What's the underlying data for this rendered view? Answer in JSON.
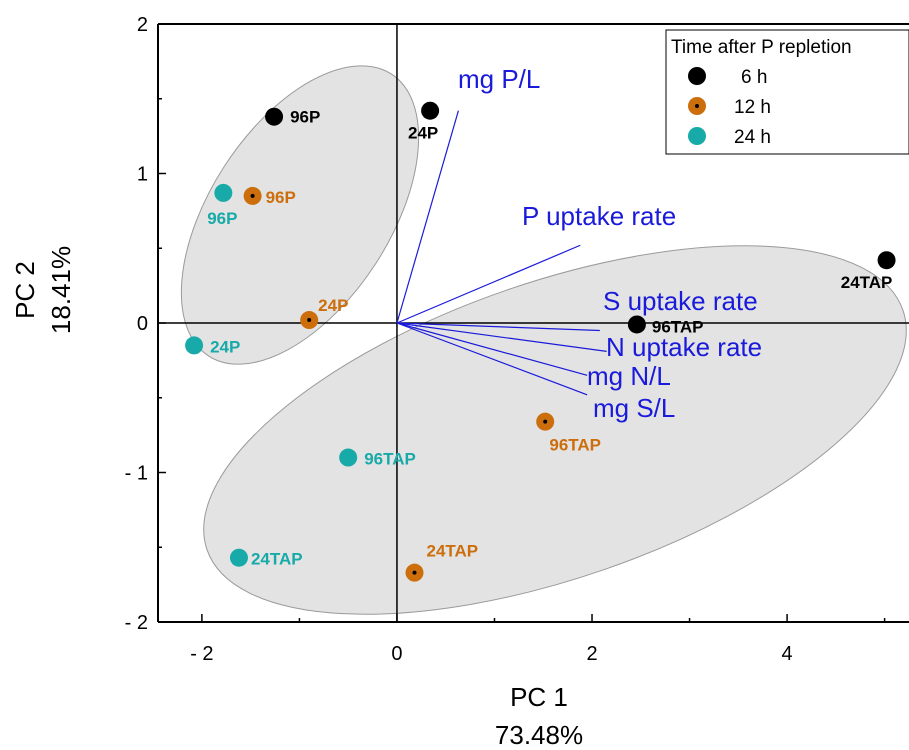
{
  "colors": {
    "6 h": "#000000",
    "12 h": "#cc6e0c",
    "24 h": "#17aaa8",
    "vector": "#1a1adb",
    "ellipse_fill": "#e3e3e3",
    "ellipse_stroke": "#9a9a9a"
  },
  "chart_data": {
    "type": "scatter",
    "subtype": "PCA biplot",
    "xlabel": "PC 1",
    "xlabel_sub": "73.48%",
    "ylabel": "PC 2",
    "ylabel_sub": "18.41%",
    "xlim": [
      -2.45,
      5.25
    ],
    "ylim": [
      -2,
      2
    ],
    "x_ticks": [
      {
        "value": -2,
        "label": "- 2"
      },
      {
        "value": 0,
        "label": "0"
      },
      {
        "value": 2,
        "label": "2"
      },
      {
        "value": 4,
        "label": "4"
      }
    ],
    "y_ticks": [
      {
        "value": 2,
        "label": "2"
      },
      {
        "value": 1,
        "label": "1"
      },
      {
        "value": 0,
        "label": "0"
      },
      {
        "value": -1,
        "label": "- 1"
      },
      {
        "value": -2,
        "label": "- 2"
      }
    ],
    "legend": {
      "title": "Time after P repletion",
      "position": "top-right",
      "entries": [
        "6 h",
        "12 h",
        "24 h"
      ]
    },
    "series": [
      {
        "name": "6 h",
        "points": [
          {
            "x": -1.26,
            "y": 1.38,
            "label": "96P"
          },
          {
            "x": 0.34,
            "y": 1.42,
            "label": "24P"
          },
          {
            "x": 2.46,
            "y": -0.01,
            "label": "96TAP"
          },
          {
            "x": 5.02,
            "y": 0.42,
            "label": "24TAP"
          }
        ]
      },
      {
        "name": "12 h",
        "points": [
          {
            "x": -1.48,
            "y": 0.85,
            "label": "96P"
          },
          {
            "x": -0.9,
            "y": 0.02,
            "label": "24P"
          },
          {
            "x": 1.52,
            "y": -0.66,
            "label": "96TAP"
          },
          {
            "x": 0.18,
            "y": -1.67,
            "label": "24TAP"
          }
        ]
      },
      {
        "name": "24 h",
        "points": [
          {
            "x": -1.78,
            "y": 0.87,
            "label": "96P"
          },
          {
            "x": -2.08,
            "y": -0.15,
            "label": "24P"
          },
          {
            "x": -0.5,
            "y": -0.9,
            "label": "96TAP"
          },
          {
            "x": -1.62,
            "y": -1.57,
            "label": "24TAP"
          }
        ]
      }
    ],
    "vectors": [
      {
        "name": "mg P/L",
        "x": 0.63,
        "y": 1.42
      },
      {
        "name": "P uptake rate",
        "x": 1.88,
        "y": 0.52
      },
      {
        "name": "S uptake rate",
        "x": 2.08,
        "y": -0.05
      },
      {
        "name": "N uptake rate",
        "x": 2.15,
        "y": -0.19
      },
      {
        "name": "mg N/L",
        "x": 1.95,
        "y": -0.35
      },
      {
        "name": "mg S/L",
        "x": 1.95,
        "y": -0.48
      }
    ],
    "grid": false
  }
}
